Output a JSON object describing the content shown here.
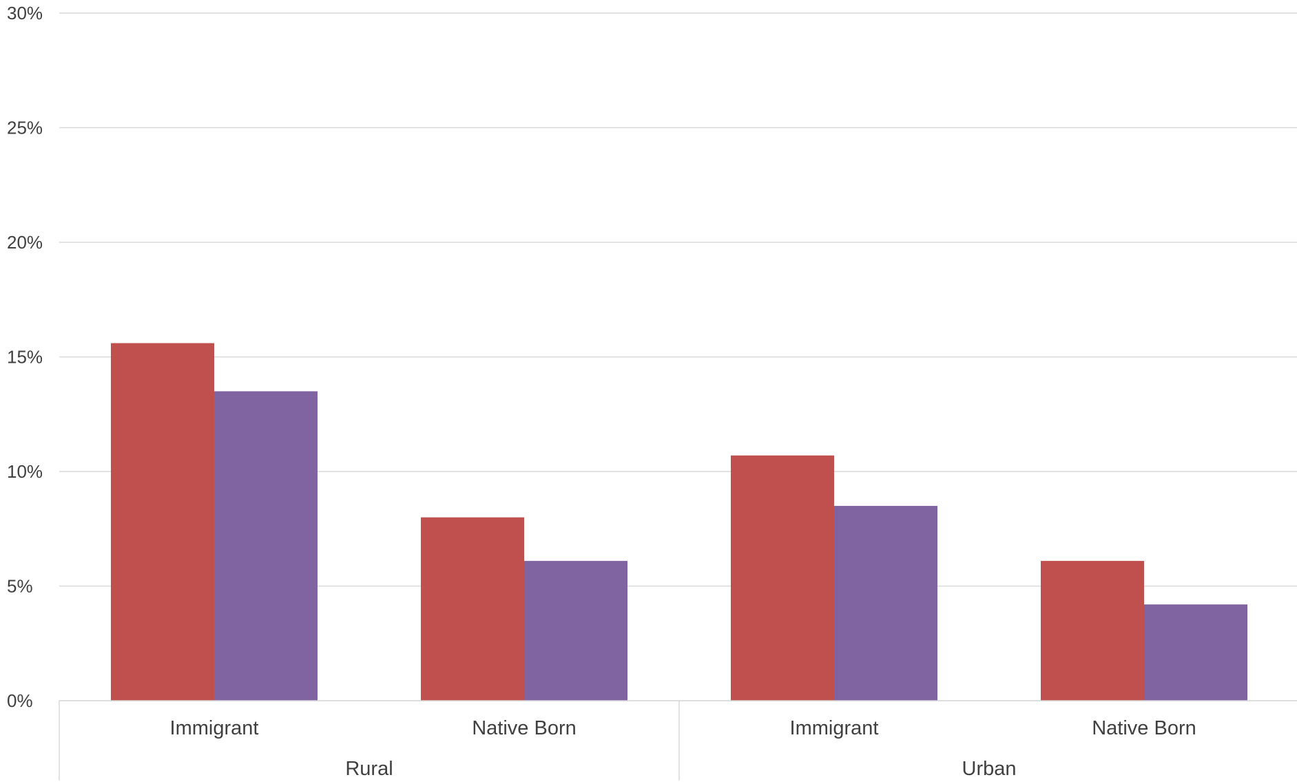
{
  "chart_data": {
    "type": "bar",
    "groups": [
      {
        "label": "Rural",
        "categories": [
          "Immigrant",
          "Native Born"
        ]
      },
      {
        "label": "Urban",
        "categories": [
          "Immigrant",
          "Native Born"
        ]
      }
    ],
    "categories": [
      "Immigrant",
      "Native Born",
      "Immigrant",
      "Native Born"
    ],
    "series": [
      {
        "color": "#c0504d",
        "values": [
          15.6,
          8.0,
          10.7,
          6.1
        ]
      },
      {
        "color": "#8064a2",
        "values": [
          13.5,
          6.1,
          8.5,
          4.2
        ]
      }
    ],
    "ylim": [
      0,
      30
    ],
    "yticks": [
      "0%",
      "5%",
      "10%",
      "15%",
      "20%",
      "25%",
      "30%"
    ],
    "ytick_values": [
      0,
      5,
      10,
      15,
      20,
      25,
      30
    ],
    "grid": true,
    "colors": {
      "gridline": "#d9d9d9",
      "axis_text": "#404040"
    }
  }
}
